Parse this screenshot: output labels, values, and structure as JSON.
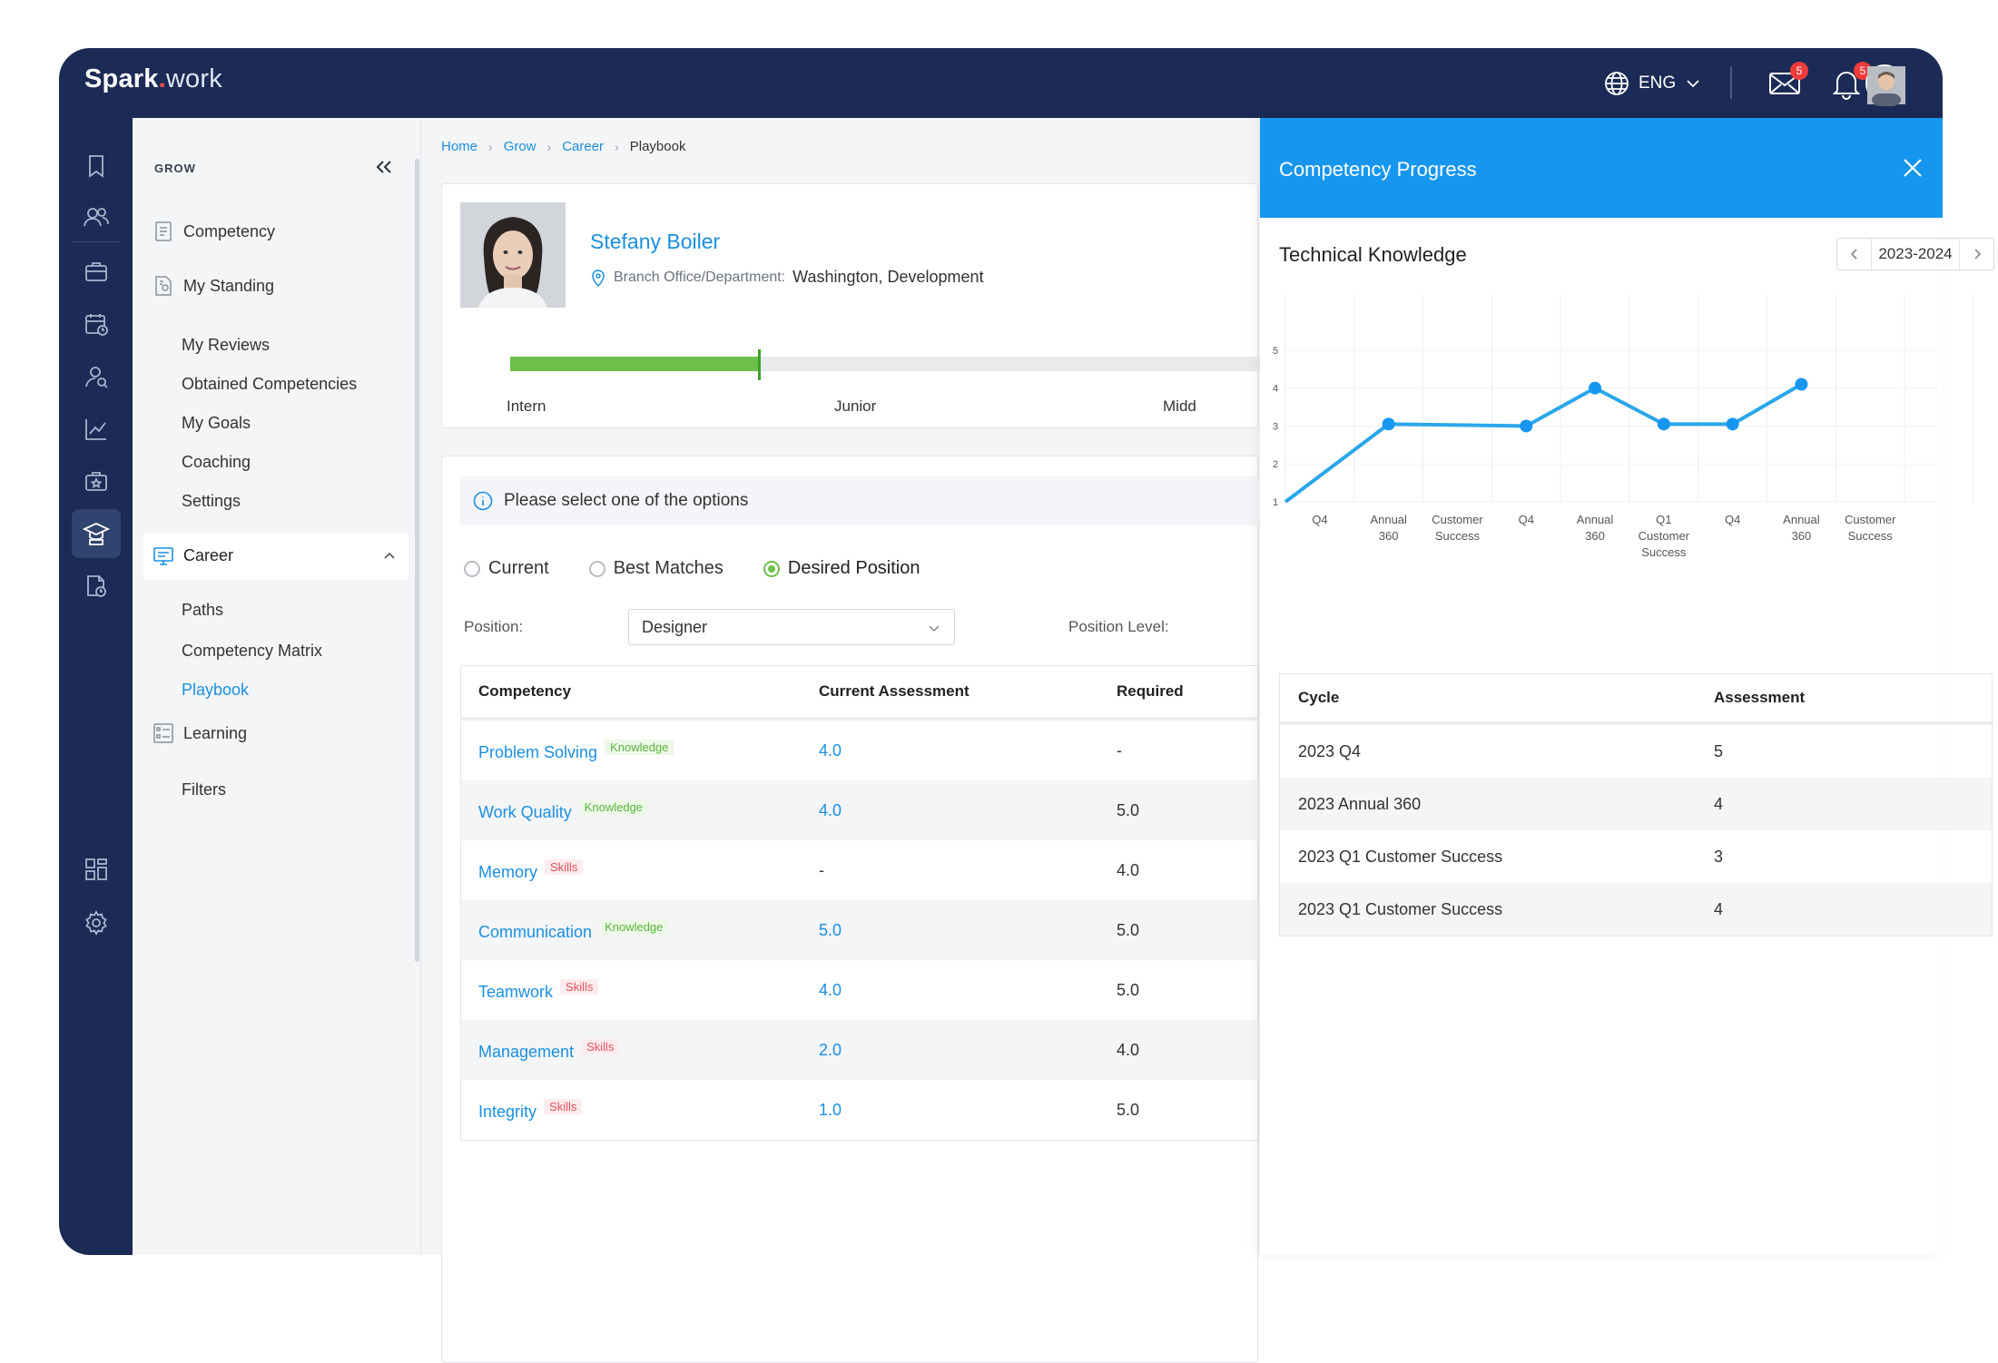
{
  "app": {
    "logo_bold": "Spark",
    "logo_dot": ".",
    "logo_light": "work",
    "language": "ENG",
    "mail_badge": "5",
    "bell_badge": "5"
  },
  "sidebar": {
    "title": "GROW",
    "items": {
      "competency": "Competency",
      "my_standing": "My Standing",
      "my_reviews": "My Reviews",
      "obtained": "Obtained Competencies",
      "my_goals": "My Goals",
      "coaching": "Coaching",
      "settings": "Settings",
      "career": "Career",
      "paths": "Paths",
      "matrix": "Competency Matrix",
      "playbook": "Playbook",
      "learning": "Learning",
      "filters": "Filters"
    }
  },
  "breadcrumb": [
    "Home",
    "Grow",
    "Career",
    "Playbook"
  ],
  "profile": {
    "name": "Stefany Boiler",
    "branch_label": "Branch Office/Department:",
    "branch_value": "Washington, Development",
    "levels": [
      "Intern",
      "Junior",
      "Midd"
    ],
    "progress_fraction": 0.33
  },
  "options": {
    "info": "Please select one of the options",
    "radios": [
      "Current",
      "Best Matches",
      "Desired Position"
    ],
    "selected": "Desired Position",
    "position_label": "Position:",
    "position_value": "Designer",
    "level_label": "Position Level:"
  },
  "competency_table": {
    "headers": [
      "Competency",
      "Current Assessment",
      "Required"
    ],
    "rows": [
      {
        "name": "Problem Solving",
        "tag": "Knowledge",
        "current": "4.0",
        "required": "-"
      },
      {
        "name": "Work Quality",
        "tag": "Knowledge",
        "current": "4.0",
        "required": "5.0"
      },
      {
        "name": "Memory",
        "tag": "Skills",
        "current": "-",
        "required": "4.0"
      },
      {
        "name": "Communication",
        "tag": "Knowledge",
        "current": "5.0",
        "required": "5.0"
      },
      {
        "name": "Teamwork",
        "tag": "Skills",
        "current": "4.0",
        "required": "5.0"
      },
      {
        "name": "Management",
        "tag": "Skills",
        "current": "2.0",
        "required": "4.0"
      },
      {
        "name": "Integrity",
        "tag": "Skills",
        "current": "1.0",
        "required": "5.0"
      }
    ]
  },
  "panel": {
    "title": "Competency Progress",
    "subtitle": "Technical Knowledge",
    "year": "2023-2024",
    "table_headers": [
      "Cycle",
      "Assessment"
    ],
    "table_rows": [
      {
        "cycle": "2023 Q4",
        "assessment": "5"
      },
      {
        "cycle": "2023 Annual 360",
        "assessment": "4"
      },
      {
        "cycle": "2023 Q1 Customer Success",
        "assessment": "3"
      },
      {
        "cycle": "2023 Q1 Customer Success",
        "assessment": "4"
      }
    ]
  },
  "chart_data": {
    "type": "line",
    "categories": [
      [
        "Q4"
      ],
      [
        "Annual",
        "360"
      ],
      [
        "Customer",
        "Success"
      ],
      [
        "Q4"
      ],
      [
        "Annual",
        "360"
      ],
      [
        "Q1",
        "Customer",
        "Success"
      ],
      [
        "Q4"
      ],
      [
        "Annual",
        "360"
      ],
      [
        "Customer",
        "Success"
      ]
    ],
    "yticks": [
      1,
      2,
      3,
      4,
      5
    ],
    "ylim": [
      1,
      5.5
    ],
    "series": [
      {
        "points": [
          [
            0,
            1
          ],
          [
            2,
            3.05
          ],
          [
            4,
            3
          ],
          [
            5,
            4
          ],
          [
            6,
            3.05
          ],
          [
            7,
            3.05
          ],
          [
            8,
            4.1
          ]
        ]
      }
    ],
    "color": "#2aa7ea",
    "grid": true
  }
}
